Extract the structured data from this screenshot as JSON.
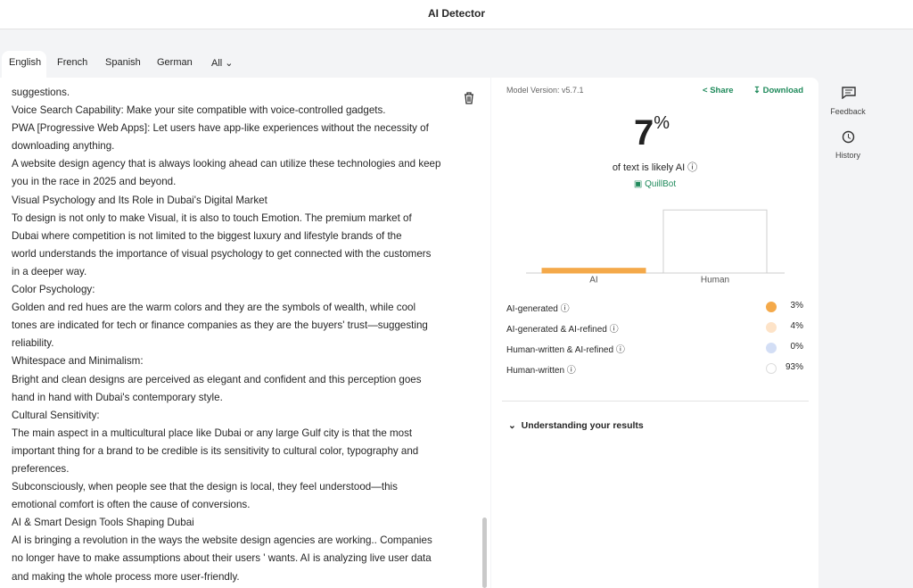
{
  "header": {
    "title": "AI Detector"
  },
  "tabs": [
    "English",
    "French",
    "Spanish",
    "German",
    "All"
  ],
  "editor": {
    "lines": [
      "suggestions.",
      "Voice Search Capability: Make your site compatible with voice-controlled gadgets.",
      "PWA [Progressive Web Apps]: Let users have app-like experiences without the necessity of",
      "downloading anything.",
      "A website design agency that is always looking ahead can utilize these technologies and keep",
      "you in the race in 2025 and beyond.",
      "Visual Psychology and Its Role in Dubai's Digital Market",
      "To design is not only to make Visual, it is also to touch Emotion. The premium market of",
      "Dubai where competition is not limited to the biggest luxury and lifestyle brands of the",
      "world understands the importance of visual psychology to get connected with the customers",
      "in a deeper way.",
      "Color Psychology:",
      "Golden and red hues are the warm colors and they are the symbols of wealth, while cool",
      "tones are indicated for tech or finance companies as they are the buyers' trust—suggesting",
      "reliability.",
      "Whitespace and Minimalism:",
      "Bright and clean designs are perceived as elegant and confident and this perception goes",
      "hand in hand with Dubai's contemporary style.",
      "Cultural Sensitivity:",
      "The main aspect in a multicultural place like Dubai or any large Gulf city is that the most",
      "important thing for a brand to be credible is its sensitivity to cultural color, typography and",
      "preferences.",
      "Subconsciously, when people see that the design is local, they feel understood—this",
      "emotional comfort is often the cause of conversions.",
      "AI & Smart Design Tools Shaping Dubai",
      "AI is bringing a revolution in the ways the website design agencies are working.. Companies",
      "no longer have to make assumptions about their users ' wants. AI is analyzing live user data",
      "and making the whole process more user-friendly."
    ]
  },
  "results": {
    "model_version": "Model Version: v5.7.1",
    "share": "Share",
    "download": "Download",
    "score": "7",
    "score_unit": "%",
    "score_caption": "of text is likely AI",
    "brand": "QuillBot",
    "chart_data": {
      "type": "bar",
      "categories": [
        "AI",
        "Human"
      ],
      "values": [
        7,
        93
      ],
      "colors": [
        "#f4a94a",
        "#ffffff"
      ],
      "ylim": [
        0,
        100
      ]
    },
    "breakdown": [
      {
        "label": "AI-generated",
        "value": "3%",
        "color": "#f4a94a"
      },
      {
        "label": "AI-generated & AI-refined",
        "value": "4%",
        "color": "#fde3c8"
      },
      {
        "label": "Human-written & AI-refined",
        "value": "0%",
        "color": "#d3def5"
      },
      {
        "label": "Human-written",
        "value": "93%",
        "color": "#ffffff"
      }
    ],
    "understanding": "Understanding your results"
  },
  "sidebar": [
    "Feedback",
    "History"
  ]
}
